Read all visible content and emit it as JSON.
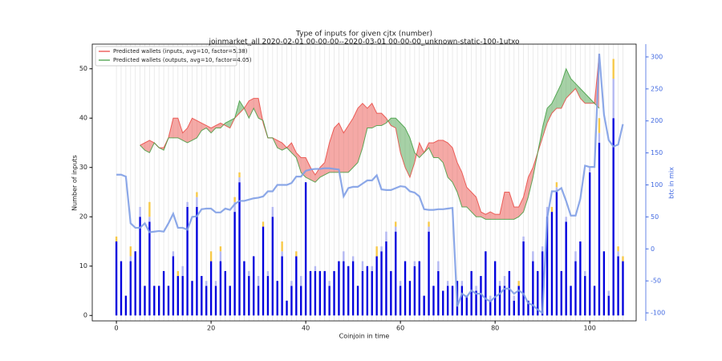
{
  "chart_data": {
    "type": "bar",
    "title": "Type of inputs for given cjtx (number)",
    "subtitle": "joinmarket_all 2020-02-01 00-00-00--2020-03-01 00-00-00_unknown-static-100-1utxo",
    "xlabel": "Coinjoin in time",
    "ylabel": "Number of inputs",
    "y2label": "btc in mix",
    "x": [
      0,
      1,
      2,
      3,
      4,
      5,
      6,
      7,
      8,
      9,
      10,
      11,
      12,
      13,
      14,
      15,
      16,
      17,
      18,
      19,
      20,
      21,
      22,
      23,
      24,
      25,
      26,
      27,
      28,
      29,
      30,
      31,
      32,
      33,
      34,
      35,
      36,
      37,
      38,
      39,
      40,
      41,
      42,
      43,
      44,
      45,
      46,
      47,
      48,
      49,
      50,
      51,
      52,
      53,
      54,
      55,
      56,
      57,
      58,
      59,
      60,
      61,
      62,
      63,
      64,
      65,
      66,
      67,
      68,
      69,
      70,
      71,
      72,
      73,
      74,
      75,
      76,
      77,
      78,
      79,
      80,
      81,
      82,
      83,
      84,
      85,
      86,
      87,
      88,
      89,
      90,
      91,
      92,
      93,
      94,
      95,
      96,
      97,
      98,
      99,
      100,
      101,
      102,
      103,
      104,
      105,
      106,
      107
    ],
    "xlim": [
      -5.1,
      109.8
    ],
    "xticks": [
      0,
      20,
      40,
      60,
      80,
      100
    ],
    "ylim": [
      -1.1,
      55
    ],
    "yticks": [
      0,
      10,
      20,
      30,
      40,
      50
    ],
    "y2lim": [
      -112.5,
      320
    ],
    "y2ticks": [
      -100,
      -50,
      0,
      50,
      100,
      150,
      200,
      250,
      300
    ],
    "xgrid": true,
    "legend": "upper left",
    "y2color": "#4169e1",
    "series": [
      {
        "type": "bar",
        "color": "#0000dd",
        "values": [
          15,
          11,
          4,
          11,
          13,
          20,
          6,
          19,
          6,
          6,
          9,
          6,
          12,
          8,
          8,
          22,
          7,
          22,
          8,
          6,
          11,
          6,
          11,
          9,
          6,
          21,
          27,
          11,
          8,
          12,
          6,
          18,
          8,
          20,
          7,
          12,
          3,
          6,
          12,
          6,
          27,
          9,
          9,
          9,
          9,
          6,
          9,
          11,
          11,
          10,
          11,
          6,
          9,
          10,
          9,
          12,
          13,
          15,
          9,
          17,
          6,
          11,
          7,
          10,
          11,
          4,
          17,
          6,
          9,
          5,
          6,
          6,
          7,
          6,
          4,
          9,
          5,
          8,
          13,
          3,
          11,
          6,
          6,
          9,
          3,
          6,
          15,
          3,
          11,
          9,
          13,
          20,
          21,
          25,
          9,
          19,
          6,
          11,
          15,
          8,
          29,
          6,
          35,
          13,
          4,
          40,
          12,
          11
        ]
      },
      {
        "type": "bar",
        "color": "#b4b8f2",
        "values": [
          0,
          0,
          0,
          1,
          0,
          2,
          0,
          1,
          0,
          0,
          0,
          0,
          1,
          0,
          2,
          1,
          0,
          2,
          0,
          1,
          0,
          1,
          2,
          0,
          0,
          2,
          1,
          0,
          1,
          0,
          2,
          0,
          1,
          2,
          0,
          1,
          0,
          1,
          0,
          2,
          0,
          0,
          1,
          0,
          0,
          1,
          0,
          0,
          2,
          0,
          1,
          0,
          2,
          0,
          1,
          0,
          1,
          2,
          0,
          1,
          1,
          0,
          0,
          1,
          0,
          0,
          1,
          0,
          2,
          0,
          1,
          0,
          0,
          1,
          0,
          0,
          1,
          0,
          0,
          1,
          0,
          1,
          2,
          0,
          1,
          0,
          1,
          0,
          2,
          0,
          1,
          2,
          0,
          1,
          0,
          1,
          0,
          2,
          0,
          1,
          1,
          0,
          2,
          0,
          1,
          8,
          1,
          0
        ]
      },
      {
        "type": "bar",
        "color": "#f7c948",
        "values": [
          1,
          0,
          0,
          2,
          0,
          0,
          0,
          3,
          0,
          0,
          0,
          0,
          0,
          1,
          0,
          0,
          0,
          1,
          0,
          0,
          2,
          0,
          1,
          0,
          0,
          1,
          1,
          0,
          0,
          0,
          0,
          1,
          0,
          0,
          0,
          2,
          0,
          0,
          1,
          0,
          0,
          0,
          0,
          0,
          0,
          0,
          0,
          0,
          0,
          0,
          0,
          0,
          0,
          0,
          0,
          2,
          0,
          0,
          0,
          1,
          0,
          0,
          0,
          0,
          0,
          0,
          1,
          0,
          0,
          0,
          0,
          0,
          0,
          0,
          0,
          0,
          0,
          0,
          0,
          0,
          0,
          0,
          0,
          0,
          0,
          1,
          0,
          0,
          0,
          0,
          0,
          0,
          1,
          1,
          0,
          0,
          0,
          0,
          0,
          0,
          0,
          0,
          3,
          0,
          0,
          4,
          1,
          1
        ]
      },
      {
        "type": "line",
        "name": "Predicted wallets (inputs, avg=10, factor=5.38)",
        "color": "#e8403a",
        "values": [
          null,
          null,
          null,
          null,
          null,
          34.5,
          35,
          35.5,
          35,
          34,
          34,
          36,
          40,
          40,
          37,
          38,
          40,
          39.5,
          39,
          38.5,
          38,
          38.5,
          39,
          38.5,
          38,
          40,
          41,
          42,
          43.5,
          44,
          44,
          39,
          36,
          36,
          35.5,
          35,
          34,
          35,
          33,
          32,
          32,
          30,
          28.5,
          30,
          31,
          35,
          38,
          39,
          37,
          38.5,
          40,
          42,
          43,
          42,
          43,
          41,
          41,
          40,
          38.5,
          38,
          33,
          30,
          28,
          31,
          35,
          33,
          35,
          35,
          35.5,
          35.5,
          35,
          34,
          31,
          29,
          26,
          25,
          24,
          21,
          20.5,
          21,
          20.5,
          20.5,
          25,
          25,
          22,
          22,
          24,
          28,
          30,
          33,
          36,
          39,
          41,
          42,
          42,
          44,
          45,
          46,
          44,
          43,
          43,
          43,
          53,
          null,
          null,
          null,
          null,
          null
        ]
      },
      {
        "type": "line",
        "name": "Predicted wallets (outputs, avg=10, factor=4.05)",
        "color": "#3a9a3a",
        "values": [
          null,
          null,
          null,
          null,
          null,
          34.5,
          33.5,
          33,
          35,
          34,
          33.5,
          36,
          36,
          36,
          35.5,
          35,
          35.5,
          36,
          37.5,
          38,
          37,
          38,
          38,
          39,
          39.5,
          40,
          43.5,
          42,
          40,
          42,
          40,
          39.5,
          36,
          36,
          34,
          33.5,
          34,
          33,
          32,
          29,
          28,
          27.5,
          27,
          28,
          28.5,
          29,
          29,
          29,
          29,
          29,
          30,
          31,
          34,
          38,
          38,
          38.5,
          38.5,
          39,
          40,
          40,
          39,
          38,
          36,
          33,
          32,
          33,
          34,
          32,
          32,
          31,
          28,
          27,
          25,
          22,
          22,
          21,
          20,
          20,
          19.5,
          19.5,
          19.5,
          19.5,
          19.5,
          19.5,
          19.5,
          20,
          21,
          24,
          28,
          33,
          38,
          42,
          43,
          45,
          47,
          50,
          48,
          47,
          46,
          45,
          44,
          43,
          42,
          null,
          null,
          null,
          null,
          null
        ]
      },
      {
        "type": "line",
        "axis": "y2",
        "color": "#7f9ee6",
        "values": [
          116,
          116,
          113,
          40,
          33,
          33,
          40,
          26,
          27,
          28,
          27,
          40,
          55,
          33,
          33,
          30,
          50,
          51,
          62,
          63,
          63,
          57,
          57,
          63,
          61,
          70,
          75,
          75,
          77,
          79,
          80,
          82,
          90,
          90,
          100,
          100,
          100,
          103,
          113,
          113,
          122,
          124,
          125,
          125,
          126,
          126,
          125,
          124,
          82,
          95,
          97,
          97,
          102,
          107,
          107,
          115,
          93,
          92,
          92,
          95,
          98,
          97,
          90,
          88,
          82,
          62,
          61,
          61,
          62,
          62,
          63,
          64,
          -90,
          -70,
          -75,
          -65,
          -70,
          -70,
          -78,
          -82,
          -75,
          -70,
          -62,
          -62,
          -70,
          -65,
          -70,
          -85,
          -88,
          -95,
          -100,
          48,
          90,
          90,
          95,
          75,
          52,
          52,
          78,
          130,
          128,
          128,
          305,
          210,
          170,
          160,
          163,
          195
        ]
      }
    ]
  }
}
